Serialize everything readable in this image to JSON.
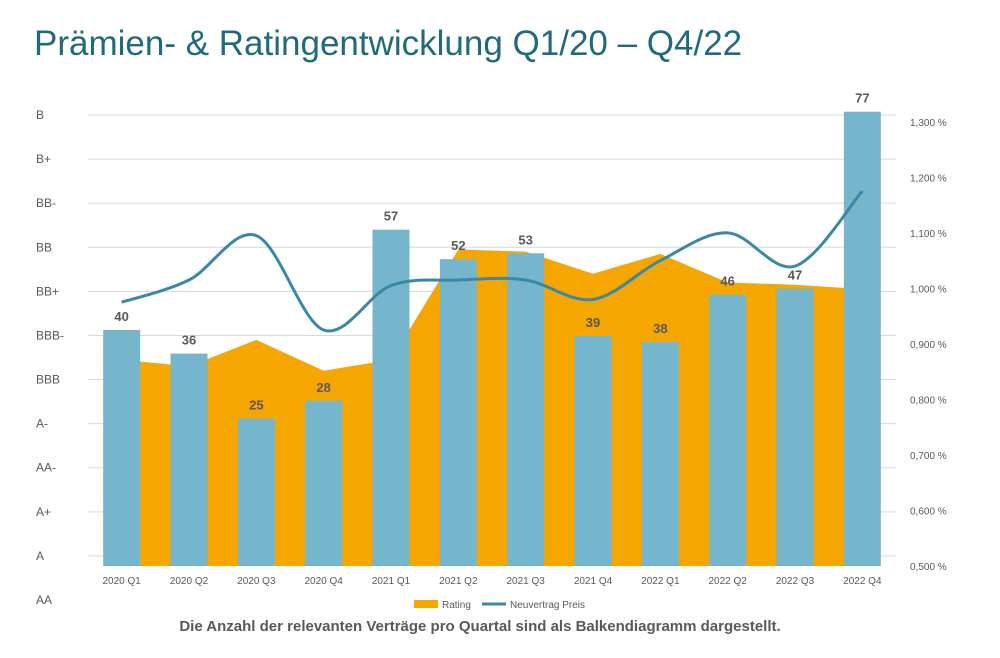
{
  "title": "Prämien- & Ratingentwicklung Q1/20 – Q4/22",
  "caption": "Die Anzahl der relevanten Verträge pro Quartal sind als Balkendiagramm dargestellt.",
  "colors": {
    "title": "#1f6b7a",
    "bars": "#76b6cc",
    "rating_area": "#f5a600",
    "line": "#3b88a6",
    "grid": "#d9d9d9",
    "axis_text": "#595959",
    "label_text": "#595959"
  },
  "chart_data": {
    "type": "bar",
    "categories": [
      "2020 Q1",
      "2020 Q2",
      "2020 Q3",
      "2020 Q4",
      "2021 Q1",
      "2021 Q2",
      "2021 Q3",
      "2021 Q4",
      "2022 Q1",
      "2022 Q2",
      "2022 Q3",
      "2022 Q4"
    ],
    "bar_series": {
      "name": "",
      "values": [
        40,
        36,
        25,
        28,
        57,
        52,
        53,
        39,
        38,
        46,
        47,
        77
      ],
      "ylim": [
        0,
        80
      ]
    },
    "rating_axis": {
      "ticks": [
        "AA",
        "A",
        "A+",
        "AA-",
        "A-",
        "BBB",
        "BBB-",
        "BB+",
        "BB",
        "BB-",
        "B+",
        "B"
      ]
    },
    "area_series": {
      "name": "Rating",
      "type": "area",
      "values": [
        5.45,
        5.3,
        5.9,
        5.2,
        5.45,
        7.95,
        7.9,
        7.4,
        7.85,
        7.2,
        7.15,
        7.05
      ]
    },
    "line_series": {
      "name": "Neuvertrag Preis",
      "type": "line",
      "values": [
        0.975,
        1.015,
        1.095,
        0.925,
        1.005,
        1.015,
        1.015,
        0.98,
        1.05,
        1.1,
        1.04,
        1.175
      ],
      "ylim": [
        0.5,
        1.35
      ],
      "ticks": [
        "0,500 %",
        "0,600 %",
        "0,700 %",
        "0,800 %",
        "0,900 %",
        "1,000 %",
        "1,100 %",
        "1,200 %",
        "1,300 %"
      ]
    },
    "legend": {
      "position": "bottom",
      "entries": [
        "Rating",
        "Neuvertrag Preis"
      ]
    },
    "grid": true
  }
}
